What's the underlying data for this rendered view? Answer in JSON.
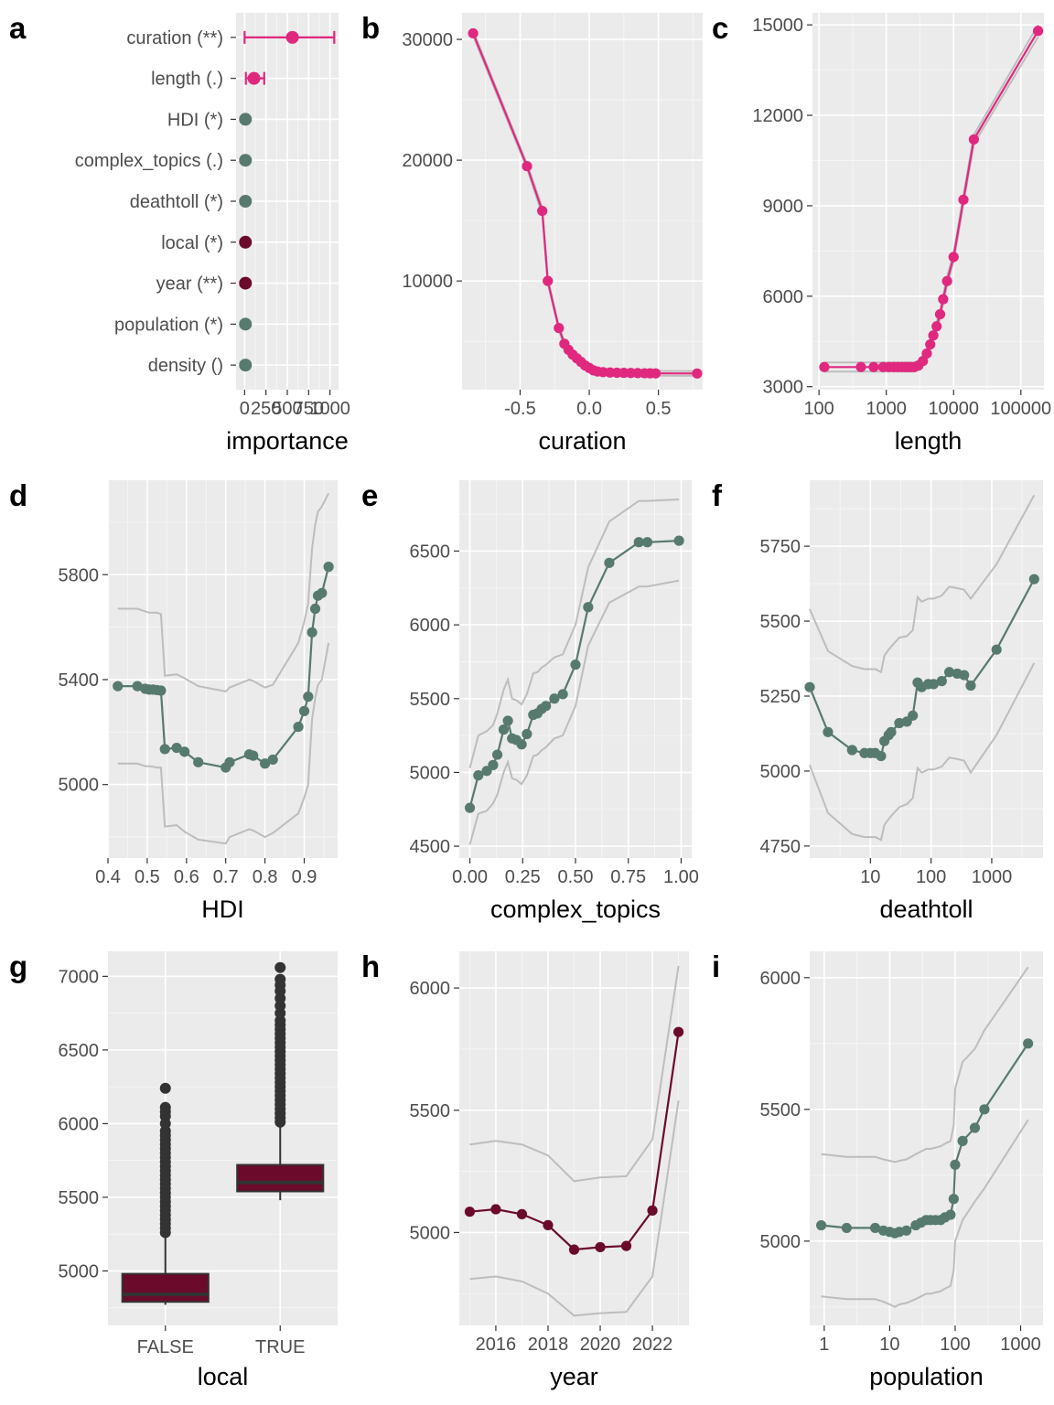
{
  "colors": {
    "pink": "#e0287f",
    "slate": "#577a6e",
    "maroon": "#6b0a2b",
    "band": "#bdbdbd",
    "outlier": "#333333"
  },
  "chart_data": [
    {
      "tag": "a",
      "type": "dot-errorbar",
      "xlabel": "importance",
      "xlim": [
        -100,
        1100
      ],
      "xticks": [
        0,
        250,
        500,
        750,
        1000
      ],
      "xticklabels": [
        "0",
        "250",
        "500",
        "750",
        "1000"
      ],
      "categories": [
        "curation (**)",
        "length (.)",
        "HDI (*)",
        "complex_topics (.)",
        "deathtoll (*)",
        "local (*)",
        "year (**)",
        "population (*)",
        "density ()"
      ],
      "values": [
        560,
        110,
        10,
        10,
        10,
        10,
        10,
        10,
        10
      ],
      "lower": [
        0,
        15,
        null,
        null,
        null,
        null,
        null,
        null,
        null
      ],
      "upper": [
        1050,
        230,
        null,
        null,
        null,
        null,
        null,
        null,
        null
      ],
      "point_colors": [
        "pink",
        "pink",
        "slate",
        "slate",
        "slate",
        "maroon",
        "maroon",
        "slate",
        "slate"
      ]
    },
    {
      "tag": "b",
      "type": "line",
      "xlabel": "curation",
      "xlim": [
        -0.92,
        0.82
      ],
      "ylim": [
        1000,
        32200
      ],
      "xticks": [
        -0.5,
        0,
        0.5
      ],
      "xticklabels": [
        "-0.5",
        "0.0",
        "0.5"
      ],
      "yticks": [
        10000,
        20000,
        30000
      ],
      "yticklabels": [
        "10000",
        "20000",
        "30000"
      ],
      "color": "pink",
      "x": [
        -0.84,
        -0.45,
        -0.34,
        -0.3,
        -0.22,
        -0.18,
        -0.15,
        -0.12,
        -0.09,
        -0.06,
        -0.03,
        0.0,
        0.03,
        0.06,
        0.1,
        0.15,
        0.2,
        0.25,
        0.3,
        0.35,
        0.4,
        0.44,
        0.48,
        0.78
      ],
      "y": [
        30500,
        19500,
        15800,
        10000,
        6100,
        4800,
        4300,
        3900,
        3600,
        3300,
        3000,
        2800,
        2600,
        2500,
        2450,
        2420,
        2400,
        2390,
        2380,
        2370,
        2360,
        2355,
        2350,
        2340
      ],
      "band_lower": [
        30300,
        19300,
        15500,
        9800,
        5900,
        4600,
        4100,
        3700,
        3400,
        3100,
        2800,
        2600,
        2400,
        2300,
        2250,
        2220,
        2200,
        2190,
        2180,
        2170,
        2160,
        2155,
        2150,
        2140
      ],
      "band_upper": [
        30700,
        19700,
        16100,
        10200,
        6300,
        5000,
        4500,
        4100,
        3800,
        3500,
        3200,
        3000,
        2800,
        2700,
        2650,
        2620,
        2600,
        2590,
        2580,
        2570,
        2560,
        2555,
        2550,
        2540
      ]
    },
    {
      "tag": "c",
      "type": "line",
      "xlabel": "length",
      "xscale": "log",
      "xlim": [
        80,
        220000
      ],
      "ylim": [
        2900,
        15400
      ],
      "xticks": [
        100,
        1000,
        10000,
        100000
      ],
      "xticklabels": [
        "100",
        "1000",
        "10000",
        "100000"
      ],
      "yticks": [
        3000,
        6000,
        9000,
        12000,
        15000
      ],
      "yticklabels": [
        "3000",
        "6000",
        "9000",
        "12000",
        "15000"
      ],
      "color": "pink",
      "x": [
        120,
        420,
        650,
        900,
        1100,
        1300,
        1500,
        1700,
        1900,
        2100,
        2300,
        2600,
        3000,
        3500,
        4000,
        4500,
        5000,
        5600,
        6300,
        7000,
        8000,
        10000,
        14000,
        20000,
        180000
      ],
      "y": [
        3650,
        3650,
        3650,
        3650,
        3650,
        3650,
        3650,
        3650,
        3650,
        3650,
        3650,
        3650,
        3700,
        3850,
        4100,
        4400,
        4700,
        5000,
        5400,
        5900,
        6500,
        7300,
        9200,
        11200,
        14800
      ],
      "band_lower": [
        3500,
        3500,
        3500,
        3500,
        3500,
        3500,
        3500,
        3500,
        3500,
        3500,
        3500,
        3500,
        3550,
        3700,
        3950,
        4250,
        4550,
        4850,
        5250,
        5750,
        6350,
        7150,
        9050,
        11050,
        14600
      ],
      "band_upper": [
        3800,
        3800,
        3800,
        3800,
        3800,
        3800,
        3800,
        3800,
        3800,
        3800,
        3800,
        3800,
        3850,
        4000,
        4250,
        4550,
        4850,
        5150,
        5550,
        6050,
        6650,
        7450,
        9350,
        11350,
        15000
      ]
    },
    {
      "tag": "d",
      "type": "line",
      "xlabel": "HDI",
      "xlim": [
        0.4,
        0.985
      ],
      "ylim": [
        4720,
        6160
      ],
      "xticks": [
        0.4,
        0.5,
        0.6,
        0.7,
        0.8,
        0.9
      ],
      "xticklabels": [
        "0.4",
        "0.5",
        "0.6",
        "0.7",
        "0.8",
        "0.9"
      ],
      "yticks": [
        5000,
        5400,
        5800
      ],
      "yticklabels": [
        "5000",
        "5400",
        "5800"
      ],
      "color": "slate",
      "x": [
        0.425,
        0.475,
        0.495,
        0.505,
        0.515,
        0.525,
        0.535,
        0.545,
        0.575,
        0.595,
        0.63,
        0.7,
        0.71,
        0.76,
        0.77,
        0.8,
        0.82,
        0.885,
        0.9,
        0.91,
        0.92,
        0.928,
        0.935,
        0.945,
        0.962
      ],
      "y": [
        5375,
        5375,
        5365,
        5362,
        5362,
        5360,
        5358,
        5135,
        5140,
        5125,
        5085,
        5065,
        5085,
        5115,
        5110,
        5080,
        5095,
        5220,
        5280,
        5335,
        5580,
        5670,
        5720,
        5730,
        5830
      ],
      "band_lower": [
        5080,
        5080,
        5070,
        5070,
        5068,
        5065,
        5065,
        4840,
        4845,
        4820,
        4790,
        4775,
        4800,
        4830,
        4825,
        4800,
        4815,
        4890,
        4950,
        5000,
        5250,
        5330,
        5380,
        5400,
        5540
      ],
      "band_upper": [
        5670,
        5670,
        5660,
        5655,
        5655,
        5655,
        5650,
        5415,
        5420,
        5405,
        5375,
        5355,
        5370,
        5400,
        5395,
        5370,
        5380,
        5540,
        5620,
        5690,
        5900,
        5990,
        6040,
        6060,
        6110
      ]
    },
    {
      "tag": "e",
      "type": "line",
      "xlabel": "complex_topics",
      "xlim": [
        -0.05,
        1.05
      ],
      "ylim": [
        4420,
        6980
      ],
      "xticks": [
        0,
        0.25,
        0.5,
        0.75,
        1.0
      ],
      "xticklabels": [
        "0.00",
        "0.25",
        "0.50",
        "0.75",
        "1.00"
      ],
      "yticks": [
        4500,
        5000,
        5500,
        6000,
        6500
      ],
      "yticklabels": [
        "4500",
        "5000",
        "5500",
        "6000",
        "6500"
      ],
      "color": "slate",
      "x": [
        0.0,
        0.04,
        0.08,
        0.11,
        0.13,
        0.16,
        0.18,
        0.2,
        0.22,
        0.245,
        0.27,
        0.3,
        0.32,
        0.34,
        0.36,
        0.4,
        0.44,
        0.5,
        0.56,
        0.66,
        0.8,
        0.84,
        0.99
      ],
      "y": [
        4760,
        4980,
        5010,
        5050,
        5120,
        5290,
        5350,
        5230,
        5220,
        5190,
        5260,
        5390,
        5400,
        5430,
        5450,
        5500,
        5530,
        5730,
        6120,
        6420,
        6560,
        6560,
        6570
      ],
      "band_lower": [
        4510,
        4720,
        4740,
        4790,
        4850,
        5000,
        5070,
        4960,
        4950,
        4920,
        4980,
        5110,
        5120,
        5150,
        5170,
        5230,
        5250,
        5450,
        5860,
        6150,
        6260,
        6260,
        6300
      ],
      "band_upper": [
        5030,
        5250,
        5280,
        5320,
        5400,
        5560,
        5630,
        5500,
        5490,
        5460,
        5530,
        5670,
        5680,
        5710,
        5730,
        5780,
        5800,
        6000,
        6390,
        6700,
        6840,
        6840,
        6850
      ]
    },
    {
      "tag": "f",
      "type": "line",
      "xlabel": "deathtoll",
      "xscale": "log",
      "xlim": [
        1,
        7000
      ],
      "ylim": [
        4710,
        5970
      ],
      "xticks": [
        10,
        100,
        1000
      ],
      "xticklabels": [
        "10",
        "100",
        "1000"
      ],
      "yticks": [
        4750,
        5000,
        5250,
        5500,
        5750
      ],
      "yticklabels": [
        "4750",
        "5000",
        "5250",
        "5500",
        "5750"
      ],
      "color": "slate",
      "x": [
        1,
        2,
        5,
        8,
        10,
        12,
        15,
        17,
        20,
        22,
        30,
        40,
        50,
        60,
        70,
        90,
        110,
        150,
        200,
        270,
        350,
        450,
        1200,
        5000
      ],
      "y": [
        5280,
        5130,
        5070,
        5060,
        5060,
        5060,
        5050,
        5100,
        5120,
        5130,
        5160,
        5165,
        5185,
        5295,
        5280,
        5290,
        5290,
        5300,
        5330,
        5325,
        5320,
        5285,
        5405,
        5640
      ],
      "band_lower": [
        5020,
        4860,
        4790,
        4780,
        4780,
        4780,
        4770,
        4820,
        4840,
        4850,
        4880,
        4890,
        4910,
        5010,
        4995,
        5005,
        5005,
        5015,
        5045,
        5040,
        5035,
        4995,
        5120,
        5360
      ],
      "band_upper": [
        5540,
        5400,
        5350,
        5340,
        5340,
        5340,
        5330,
        5385,
        5405,
        5415,
        5445,
        5450,
        5470,
        5580,
        5565,
        5575,
        5575,
        5585,
        5615,
        5610,
        5605,
        5575,
        5690,
        5920
      ]
    },
    {
      "tag": "g",
      "type": "box",
      "xlabel": "local",
      "ylim": [
        4630,
        7170
      ],
      "yticks": [
        5000,
        5500,
        6000,
        6500,
        7000
      ],
      "yticklabels": [
        "5000",
        "5500",
        "6000",
        "6500",
        "7000"
      ],
      "categories": [
        "FALSE",
        "TRUE"
      ],
      "boxes": [
        {
          "whisker_low": 4770,
          "q1": 4790,
          "median": 4840,
          "q3": 4980,
          "whisker_high": 5230,
          "outliers": [
            5260,
            5290,
            5320,
            5350,
            5380,
            5410,
            5440,
            5470,
            5500,
            5530,
            5560,
            5590,
            5620,
            5650,
            5680,
            5710,
            5740,
            5770,
            5800,
            5830,
            5860,
            5890,
            5920,
            5950,
            6000,
            6050,
            6080,
            6110,
            6240
          ]
        },
        {
          "whisker_low": 5480,
          "q1": 5540,
          "median": 5600,
          "q3": 5720,
          "whisker_high": 5990,
          "outliers": [
            6010,
            6040,
            6070,
            6100,
            6130,
            6160,
            6190,
            6220,
            6250,
            6280,
            6310,
            6340,
            6370,
            6400,
            6430,
            6460,
            6490,
            6520,
            6550,
            6580,
            6610,
            6640,
            6670,
            6700,
            6750,
            6800,
            6850,
            6900,
            6940,
            6980,
            7060
          ]
        }
      ],
      "color": "maroon"
    },
    {
      "tag": "h",
      "type": "line",
      "xlabel": "year",
      "xlim": [
        2014.6,
        2023.4
      ],
      "ylim": [
        4620,
        6150
      ],
      "xticks": [
        2016,
        2018,
        2020,
        2022
      ],
      "xticklabels": [
        "2016",
        "2018",
        "2020",
        "2022"
      ],
      "yticks": [
        5000,
        5500,
        6000
      ],
      "yticklabels": [
        "5000",
        "5500",
        "6000"
      ],
      "color": "maroon",
      "x": [
        2015,
        2016,
        2017,
        2018,
        2019,
        2020,
        2021,
        2022,
        2023
      ],
      "y": [
        5085,
        5095,
        5075,
        5030,
        4930,
        4940,
        4945,
        5090,
        5820
      ],
      "band_lower": [
        4810,
        4820,
        4800,
        4750,
        4660,
        4670,
        4675,
        4820,
        5540
      ],
      "band_upper": [
        5360,
        5375,
        5360,
        5315,
        5210,
        5225,
        5230,
        5380,
        6090
      ]
    },
    {
      "tag": "i",
      "type": "line",
      "xlabel": "population",
      "xscale": "log",
      "xlim": [
        0.6,
        2200
      ],
      "ylim": [
        4680,
        6100
      ],
      "xticks": [
        1,
        10,
        100,
        1000
      ],
      "xticklabels": [
        "1",
        "10",
        "100",
        "1000"
      ],
      "yticks": [
        5000,
        5500,
        6000
      ],
      "yticklabels": [
        "5000",
        "5500",
        "6000"
      ],
      "color": "slate",
      "x": [
        0.9,
        2.2,
        6,
        8,
        10,
        12,
        14,
        18,
        25,
        30,
        36,
        42,
        50,
        60,
        70,
        85,
        95,
        100,
        130,
        200,
        280,
        1300
      ],
      "y": [
        5060,
        5050,
        5050,
        5040,
        5035,
        5030,
        5035,
        5040,
        5060,
        5070,
        5080,
        5080,
        5080,
        5080,
        5090,
        5100,
        5160,
        5290,
        5380,
        5430,
        5500,
        5750
      ],
      "band_lower": [
        4790,
        4780,
        4780,
        4770,
        4760,
        4750,
        4760,
        4765,
        4780,
        4790,
        4800,
        4800,
        4805,
        4810,
        4820,
        4830,
        4890,
        5000,
        5080,
        5150,
        5200,
        5460
      ],
      "band_upper": [
        5330,
        5320,
        5320,
        5310,
        5305,
        5300,
        5305,
        5310,
        5330,
        5340,
        5350,
        5350,
        5355,
        5360,
        5370,
        5380,
        5440,
        5580,
        5680,
        5730,
        5800,
        6040
      ]
    }
  ]
}
